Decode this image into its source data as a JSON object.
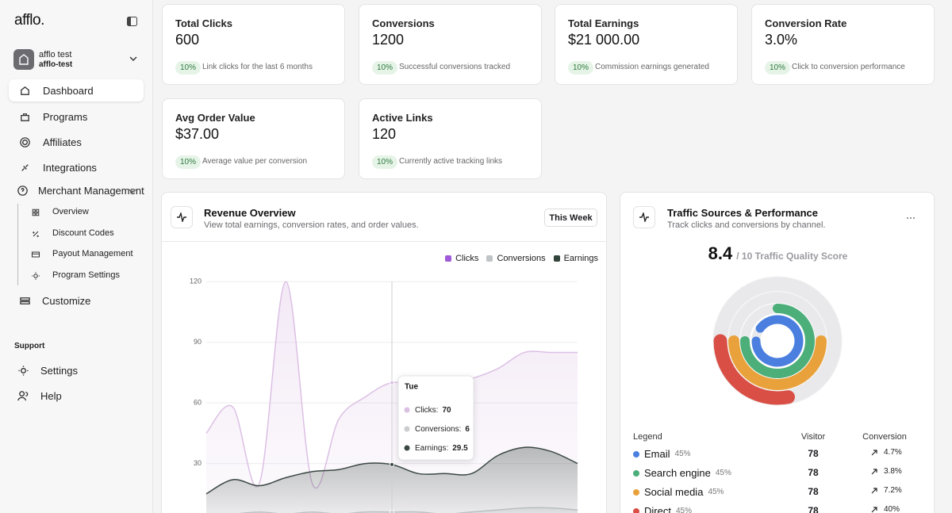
{
  "sidebar": {
    "brand": "afflo.",
    "account": {
      "name": "afflo test",
      "handle": "afflo-test"
    },
    "nav": [
      "Dashboard",
      "Programs",
      "Affiliates",
      "Integrations",
      "Merchant Management"
    ],
    "subnav": [
      "Overview",
      "Discount Codes",
      "Payout Management",
      "Program Settings"
    ],
    "customize": "Customize",
    "support_heading": "Support",
    "support": [
      "Settings",
      "Help"
    ]
  },
  "stats": [
    {
      "title": "Total Clicks",
      "value": "600",
      "badge": "10%",
      "note": "Link clicks for the last 6 months"
    },
    {
      "title": "Conversions",
      "value": "1200",
      "badge": "10%",
      "note": "Successful conversions tracked"
    },
    {
      "title": "Total Earnings",
      "value": "$21 000.00",
      "badge": "10%",
      "note": "Commission earnings generated"
    },
    {
      "title": "Conversion Rate",
      "value": "3.0%",
      "badge": "10%",
      "note": "Click to conversion performance"
    },
    {
      "title": "Avg Order Value",
      "value": "$37.00",
      "badge": "10%",
      "note": "Average value per conversion"
    },
    {
      "title": "Active Links",
      "value": "120",
      "badge": "10%",
      "note": "Currently active tracking links"
    }
  ],
  "revenue": {
    "title": "Revenue Overview",
    "subtitle": "View total earnings, conversion rates, and order values.",
    "button": "This Week"
  },
  "traffic": {
    "title": "Traffic Sources & Performance",
    "subtitle": "Track clicks and conversions by channel.",
    "score": "8.4",
    "score_caption": "/ 10 Traffic Quality Score",
    "columns": [
      "Legend",
      "Visitor",
      "Conversion"
    ],
    "rows": [
      {
        "share": "45%",
        "visitors": "78",
        "conversion": "4.7%"
      },
      {
        "share": "45%",
        "visitors": "78",
        "conversion": "3.8%"
      },
      {
        "share": "45%",
        "visitors": "78",
        "conversion": "7.2%"
      },
      {
        "share": "45%",
        "visitors": "78",
        "conversion": "40%"
      }
    ]
  },
  "chart_data": [
    {
      "type": "line",
      "categories": [
        null,
        null,
        null,
        null,
        null,
        null,
        null,
        "Tue",
        null,
        null,
        null,
        null,
        null,
        null,
        null
      ],
      "series": [
        {
          "name": "Clicks",
          "color": "#a05ad8",
          "line_color": "#dcc0e4",
          "values": [
            45,
            58,
            20,
            120,
            20,
            52,
            63,
            70,
            68,
            69,
            72,
            77,
            85,
            85,
            85
          ]
        },
        {
          "name": "Conversions",
          "color": "#bfc4c7",
          "line_color": "#c9cdd0",
          "values": [
            5,
            5,
            6,
            5,
            6,
            5,
            6,
            6,
            6,
            5,
            6,
            7,
            8,
            8,
            7
          ]
        },
        {
          "name": "Earnings",
          "color": "#33443d",
          "line_color": "#3a4742",
          "values": [
            15,
            22,
            19,
            23,
            26,
            27,
            30,
            29.5,
            25,
            25,
            25,
            34,
            38,
            36,
            30
          ]
        }
      ],
      "ylim": [
        0,
        126
      ],
      "yticks": [
        30,
        60,
        90,
        120
      ],
      "grid": true,
      "tooltip_labels": [
        "Clicks:",
        "Conversions:",
        "Earnings:"
      ]
    },
    {
      "type": "radial",
      "categories": [
        "Email",
        "Search engine",
        "Social media",
        "Direct"
      ],
      "colors": [
        "#4a7fe0",
        "#4caf7a",
        "#e9a23b",
        "#d94f45"
      ],
      "values": [
        90,
        75,
        50,
        28
      ],
      "lim": [
        0,
        100
      ]
    }
  ]
}
